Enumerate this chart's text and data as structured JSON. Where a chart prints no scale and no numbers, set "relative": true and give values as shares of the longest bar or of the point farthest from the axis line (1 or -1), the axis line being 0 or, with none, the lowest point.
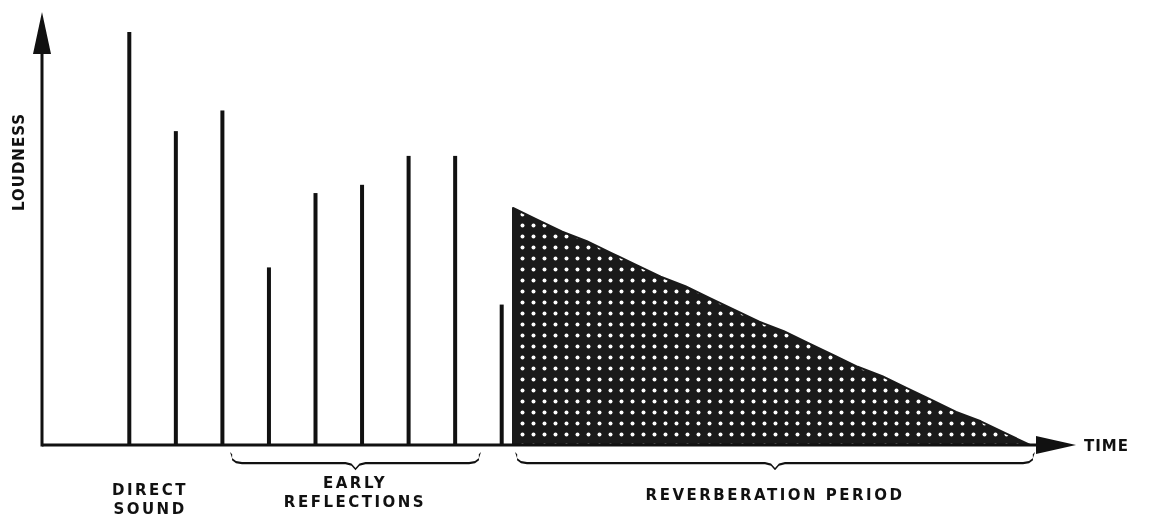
{
  "chart_data": [
    {
      "type": "bar",
      "relative": true,
      "ylabel": "LOUDNESS",
      "annotations": [
        "DIRECT SOUND",
        "EARLY REFLECTIONS"
      ],
      "categories": [
        null,
        null,
        null,
        null,
        null,
        null,
        null,
        null,
        null
      ],
      "color": "#111111",
      "values": [
        1,
        0.76,
        0.81,
        0.43,
        0.61,
        0.63,
        0.7,
        0.7,
        0.34
      ]
    },
    {
      "type": "area",
      "relative": true,
      "xlabel": "TIME",
      "annotations": [
        "REVERBERATION PERIOD"
      ],
      "categories": [
        null,
        null,
        null,
        null,
        null,
        null,
        null,
        null,
        null,
        null,
        null,
        null,
        null,
        null,
        null,
        null,
        null,
        null,
        null,
        null,
        null,
        null
      ],
      "color": "#1a1a1a",
      "values": [
        1,
        0.95,
        0.9,
        0.86,
        0.81,
        0.76,
        0.71,
        0.67,
        0.62,
        0.57,
        0.52,
        0.48,
        0.43,
        0.38,
        0.33,
        0.29,
        0.24,
        0.19,
        0.14,
        0.1,
        0.05,
        0
      ]
    }
  ]
}
